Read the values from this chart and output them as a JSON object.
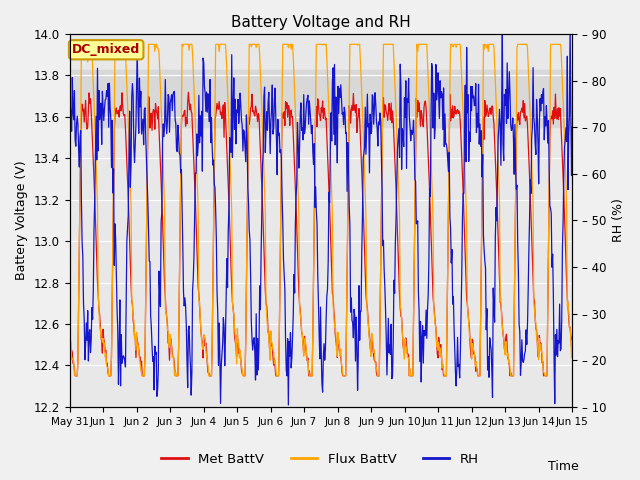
{
  "title": "Battery Voltage and RH",
  "xlabel": "Time",
  "ylabel_left": "Battery Voltage (V)",
  "ylabel_right": "RH (%)",
  "ylim_left": [
    12.2,
    14.0
  ],
  "ylim_right": [
    10,
    90
  ],
  "xlim": [
    0,
    15
  ],
  "xtick_labels": [
    "May 31",
    "Jun 1",
    "Jun 2",
    "Jun 3",
    "Jun 4",
    "Jun 5",
    "Jun 6",
    "Jun 7",
    "Jun 8",
    "Jun 9",
    "Jun 10",
    "Jun 11",
    "Jun 12",
    "Jun 13",
    "Jun 14",
    "Jun 15"
  ],
  "xtick_positions": [
    0,
    1,
    2,
    3,
    4,
    5,
    6,
    7,
    8,
    9,
    10,
    11,
    12,
    13,
    14,
    15
  ],
  "ytick_left": [
    12.2,
    12.4,
    12.6,
    12.8,
    13.0,
    13.2,
    13.4,
    13.6,
    13.8,
    14.0
  ],
  "ytick_right": [
    10,
    20,
    30,
    40,
    50,
    60,
    70,
    80,
    90
  ],
  "color_met": "#e01010",
  "color_flux": "#FFA500",
  "color_rh": "#1515cc",
  "shade_ymin": 13.55,
  "shade_ymax": 13.825,
  "shade_color": "#d8d8d8",
  "dc_mixed_label": "DC_mixed",
  "dc_mixed_text_color": "#aa0000",
  "dc_mixed_bg_color": "#ffff99",
  "dc_mixed_border_color": "#cc9900",
  "legend_labels": [
    "Met BattV",
    "Flux BattV",
    "RH"
  ],
  "bg_color": "#e8e8e8",
  "grid_color": "#ffffff",
  "fig_bg": "#f0f0f0"
}
